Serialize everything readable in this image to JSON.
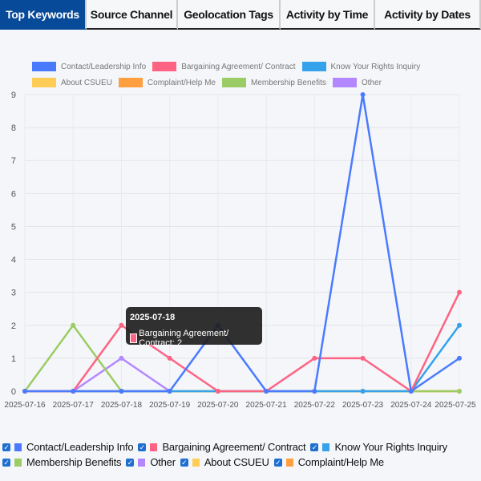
{
  "tabs": [
    {
      "label": "Top Keywords",
      "active": true
    },
    {
      "label": "Source Channel"
    },
    {
      "label": "Geolocation Tags"
    },
    {
      "label": "Activity by Time"
    },
    {
      "label": "Activity by Dates"
    }
  ],
  "tooltip": {
    "title": "2025-07-18",
    "text": "Bargaining Agreement/ Contract: 2",
    "color": "#ff6384"
  },
  "chart_data": {
    "type": "line",
    "x": [
      "2025-07-16",
      "2025-07-17",
      "2025-07-18",
      "2025-07-19",
      "2025-07-20",
      "2025-07-21",
      "2025-07-22",
      "2025-07-23",
      "2025-07-24",
      "2025-07-25"
    ],
    "ylim": [
      0,
      9
    ],
    "yticks": [
      0,
      1,
      2,
      3,
      4,
      5,
      6,
      7,
      8,
      9
    ],
    "grid": true,
    "legend_position": "top",
    "series": [
      {
        "name": "Contact/Leadership Info",
        "color": "#4a7bff",
        "values": [
          0,
          0,
          0,
          0,
          2,
          0,
          0,
          9,
          0,
          1
        ]
      },
      {
        "name": "Bargaining Agreement/ Contract",
        "color": "#ff6384",
        "values": [
          0,
          0,
          2,
          1,
          0,
          0,
          1,
          1,
          0,
          3
        ]
      },
      {
        "name": "Know Your Rights Inquiry",
        "color": "#36a2eb",
        "values": [
          0,
          0,
          0,
          0,
          0,
          0,
          0,
          0,
          0,
          2
        ]
      },
      {
        "name": "About CSUEU",
        "color": "#ffcd56",
        "values": [
          0,
          0,
          0,
          0,
          0,
          0,
          0,
          0,
          0,
          0
        ]
      },
      {
        "name": "Complaint/Help Me",
        "color": "#ff9f40",
        "values": [
          0,
          0,
          0,
          0,
          0,
          0,
          0,
          0,
          0,
          0
        ]
      },
      {
        "name": "Membership Benefits",
        "color": "#9ccc65",
        "values": [
          0,
          2,
          0,
          0,
          0,
          0,
          0,
          0,
          0,
          0
        ]
      },
      {
        "name": "Other",
        "color": "#b388ff",
        "values": [
          null,
          0,
          1,
          0,
          null,
          null,
          null,
          null,
          null,
          null
        ]
      }
    ]
  },
  "toggles": [
    {
      "label": "Contact/Leadership Info",
      "color": "#4a7bff",
      "checked": true
    },
    {
      "label": "Bargaining Agreement/ Contract",
      "color": "#ff6384",
      "checked": true
    },
    {
      "label": "Know Your Rights Inquiry",
      "color": "#36a2eb",
      "checked": true
    },
    {
      "label": "Membership Benefits",
      "color": "#9ccc65",
      "checked": true
    },
    {
      "label": "Other",
      "color": "#b388ff",
      "checked": true
    },
    {
      "label": "About CSUEU",
      "color": "#ffcd56",
      "checked": true
    },
    {
      "label": "Complaint/Help Me",
      "color": "#ff9f40",
      "checked": true
    }
  ]
}
